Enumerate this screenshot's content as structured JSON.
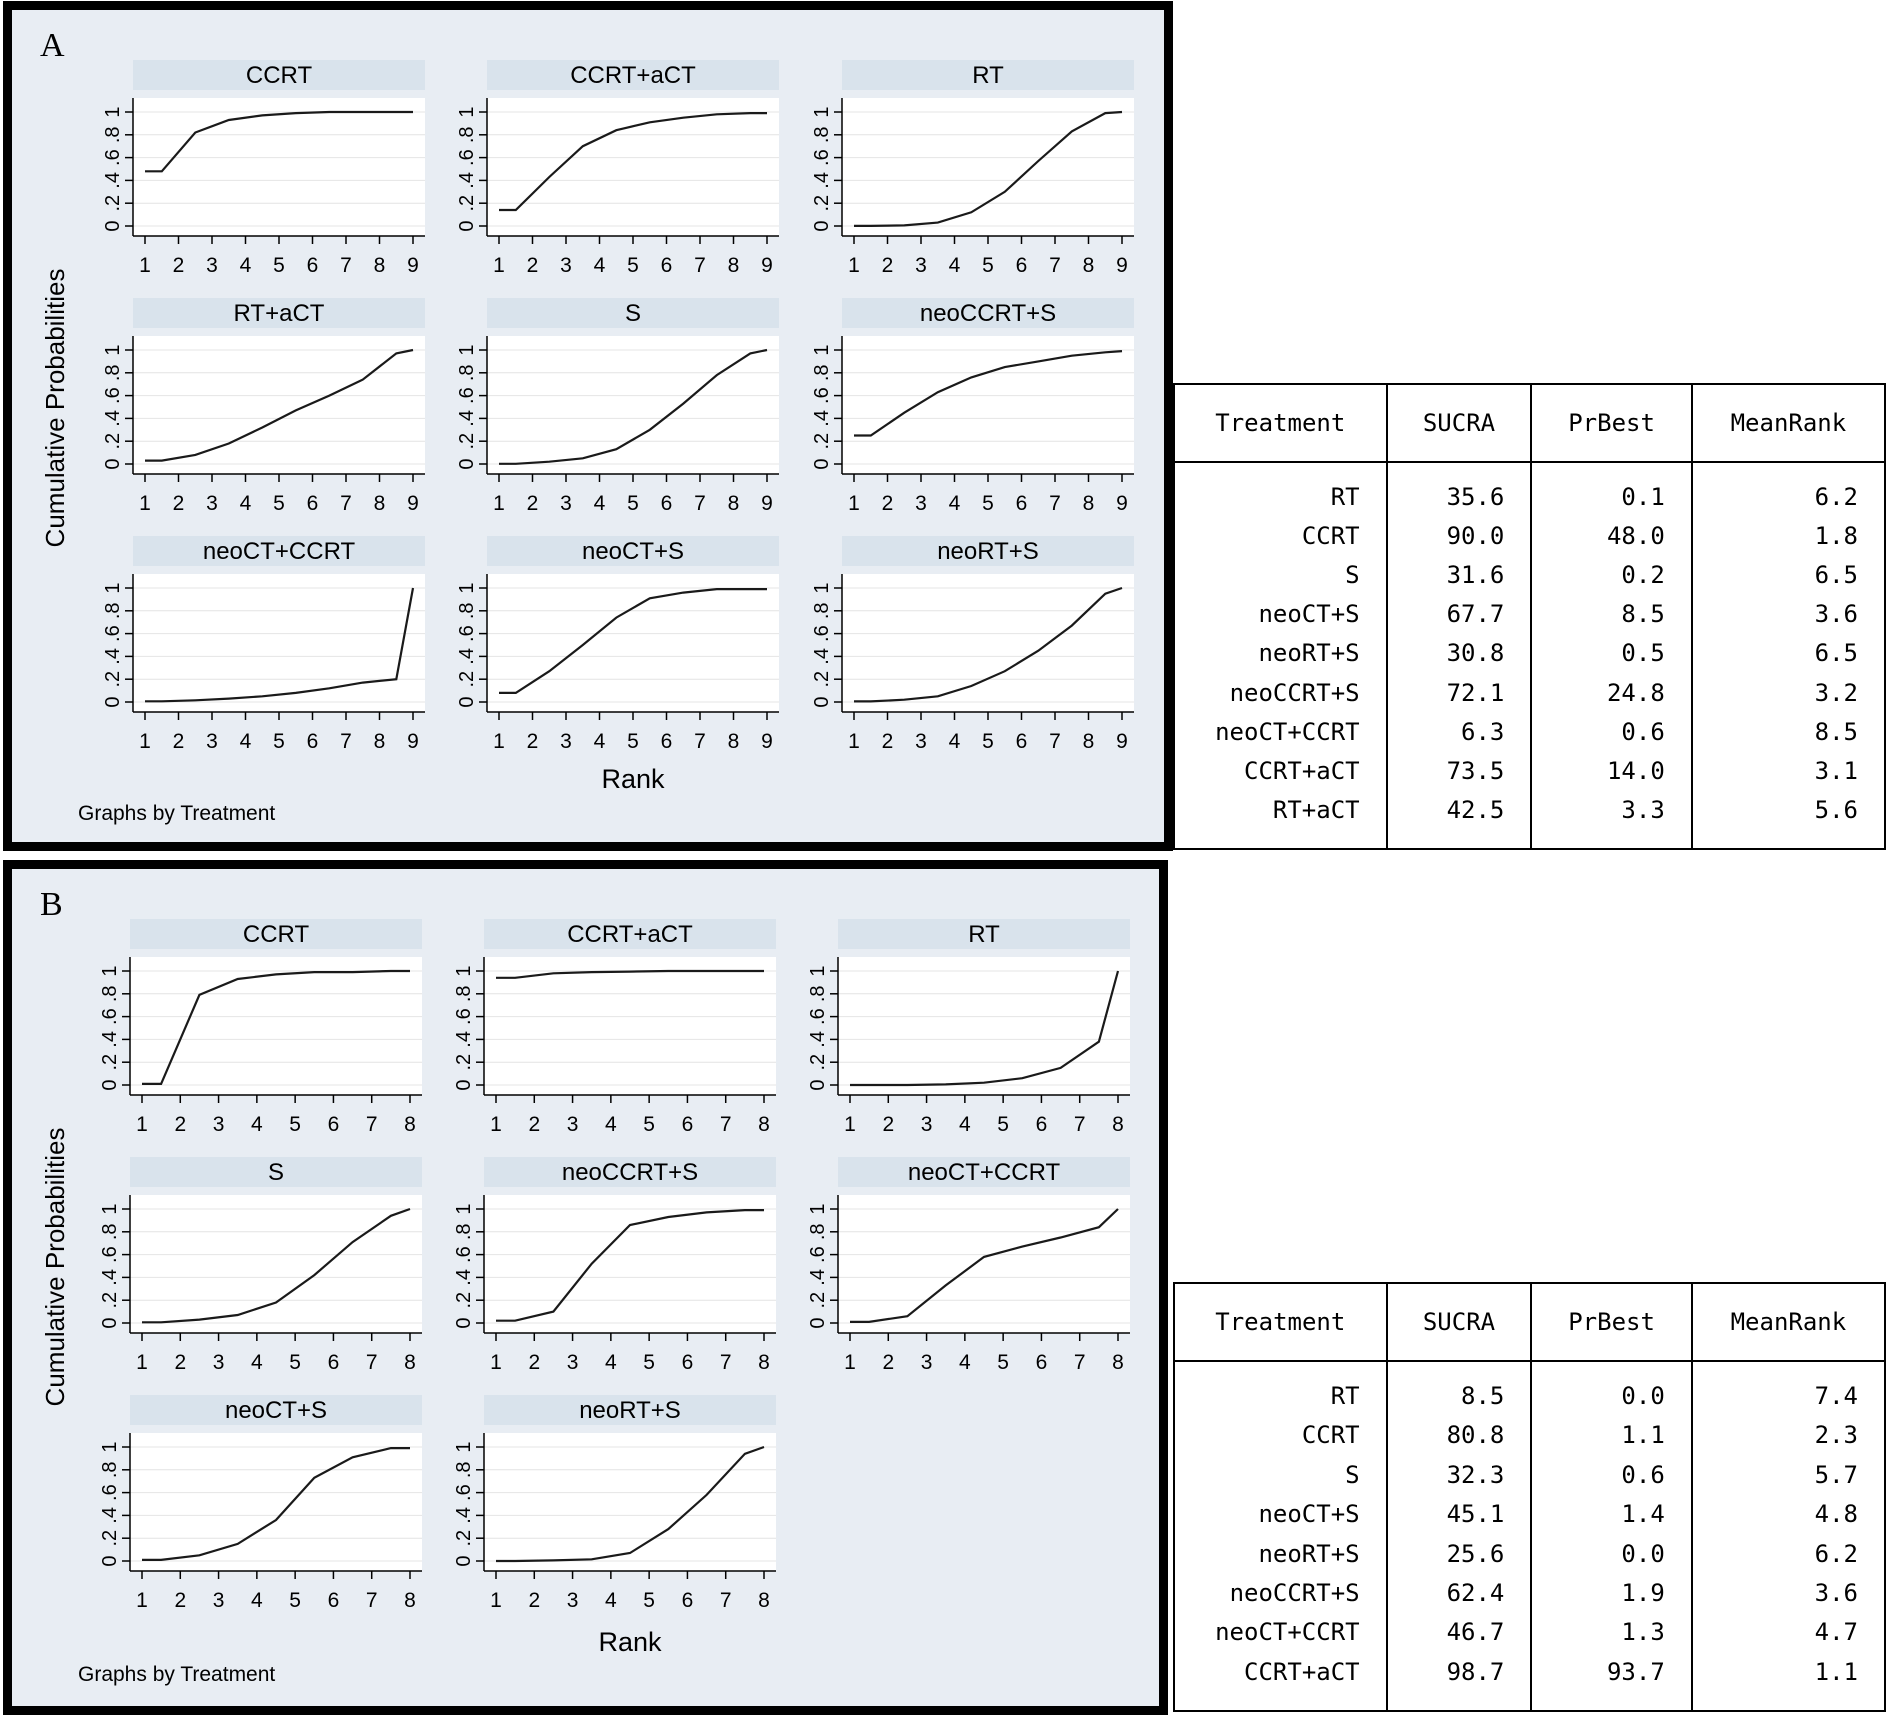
{
  "panel_a": {
    "letter": "A",
    "y_title": "Cumulative Probabilities",
    "x_title": "Rank",
    "note": "Graphs by Treatment",
    "ranks": [
      1,
      2,
      3,
      4,
      5,
      6,
      7,
      8,
      9
    ],
    "ytick_labels": [
      "0",
      ".2",
      ".4",
      ".6",
      ".8",
      "1"
    ]
  },
  "panel_b": {
    "letter": "B",
    "y_title": "Cumulative Probabilities",
    "x_title": "Rank",
    "note": "Graphs by Treatment",
    "ranks": [
      1,
      2,
      3,
      4,
      5,
      6,
      7,
      8
    ],
    "ytick_labels": [
      "0",
      ".2",
      ".4",
      ".6",
      ".8",
      "1"
    ]
  },
  "table_a": {
    "headers": [
      "Treatment",
      "SUCRA",
      "PrBest",
      "MeanRank"
    ],
    "rows": [
      [
        "RT",
        "35.6",
        "0.1",
        "6.2"
      ],
      [
        "CCRT",
        "90.0",
        "48.0",
        "1.8"
      ],
      [
        "S",
        "31.6",
        "0.2",
        "6.5"
      ],
      [
        "neoCT+S",
        "67.7",
        "8.5",
        "3.6"
      ],
      [
        "neoRT+S",
        "30.8",
        "0.5",
        "6.5"
      ],
      [
        "neoCCRT+S",
        "72.1",
        "24.8",
        "3.2"
      ],
      [
        "neoCT+CCRT",
        "6.3",
        "0.6",
        "8.5"
      ],
      [
        "CCRT+aCT",
        "73.5",
        "14.0",
        "3.1"
      ],
      [
        "RT+aCT",
        "42.5",
        "3.3",
        "5.6"
      ]
    ]
  },
  "table_b": {
    "headers": [
      "Treatment",
      "SUCRA",
      "PrBest",
      "MeanRank"
    ],
    "rows": [
      [
        "RT",
        "8.5",
        "0.0",
        "7.4"
      ],
      [
        "CCRT",
        "80.8",
        "1.1",
        "2.3"
      ],
      [
        "S",
        "32.3",
        "0.6",
        "5.7"
      ],
      [
        "neoCT+S",
        "45.1",
        "1.4",
        "4.8"
      ],
      [
        "neoRT+S",
        "25.6",
        "0.0",
        "6.2"
      ],
      [
        "neoCCRT+S",
        "62.4",
        "1.9",
        "3.6"
      ],
      [
        "neoCT+CCRT",
        "46.7",
        "1.3",
        "4.7"
      ],
      [
        "CCRT+aCT",
        "98.7",
        "93.7",
        "1.1"
      ]
    ]
  },
  "chart_data": [
    {
      "type": "line",
      "panel": "A",
      "xlabel": "Rank",
      "ylabel": "Cumulative Probabilities",
      "xlim": [
        1,
        9
      ],
      "ylim": [
        0,
        1
      ],
      "series": [
        {
          "name": "CCRT",
          "x": [
            1,
            1.5,
            2.5,
            3.5,
            4.5,
            5.5,
            6.5,
            7.5,
            8.5,
            9
          ],
          "values": [
            0.48,
            0.48,
            0.82,
            0.93,
            0.97,
            0.99,
            1,
            1,
            1,
            1
          ]
        },
        {
          "name": "CCRT+aCT",
          "x": [
            1,
            1.5,
            2.5,
            3.5,
            4.5,
            5.5,
            6.5,
            7.5,
            8.5,
            9
          ],
          "values": [
            0.14,
            0.14,
            0.43,
            0.7,
            0.84,
            0.91,
            0.95,
            0.98,
            0.99,
            0.99
          ]
        },
        {
          "name": "RT",
          "x": [
            1,
            1.5,
            2.5,
            3.5,
            4.5,
            5.5,
            6.5,
            7.5,
            8.5,
            9
          ],
          "values": [
            0.001,
            0.001,
            0.005,
            0.03,
            0.12,
            0.3,
            0.57,
            0.83,
            0.99,
            1
          ]
        },
        {
          "name": "RT+aCT",
          "x": [
            1,
            1.5,
            2.5,
            3.5,
            4.5,
            5.5,
            6.5,
            7.5,
            8.5,
            9
          ],
          "values": [
            0.03,
            0.03,
            0.08,
            0.18,
            0.32,
            0.47,
            0.6,
            0.74,
            0.97,
            1
          ]
        },
        {
          "name": "S",
          "x": [
            1,
            1.5,
            2.5,
            3.5,
            4.5,
            5.5,
            6.5,
            7.5,
            8.5,
            9
          ],
          "values": [
            0.002,
            0.002,
            0.02,
            0.05,
            0.13,
            0.3,
            0.53,
            0.78,
            0.97,
            1
          ]
        },
        {
          "name": "neoCCRT+S",
          "x": [
            1,
            1.5,
            2.5,
            3.5,
            4.5,
            5.5,
            6.5,
            7.5,
            8.5,
            9
          ],
          "values": [
            0.25,
            0.25,
            0.45,
            0.63,
            0.76,
            0.85,
            0.9,
            0.95,
            0.98,
            0.99
          ]
        },
        {
          "name": "neoCT+CCRT",
          "x": [
            1,
            1.5,
            2.5,
            3.5,
            4.5,
            5.5,
            6.5,
            7.5,
            8.5,
            9
          ],
          "values": [
            0.006,
            0.006,
            0.015,
            0.03,
            0.05,
            0.08,
            0.12,
            0.17,
            0.2,
            1
          ]
        },
        {
          "name": "neoCT+S",
          "x": [
            1,
            1.5,
            2.5,
            3.5,
            4.5,
            5.5,
            6.5,
            7.5,
            8.5,
            9
          ],
          "values": [
            0.08,
            0.08,
            0.27,
            0.5,
            0.74,
            0.91,
            0.96,
            0.99,
            0.99,
            0.99
          ]
        },
        {
          "name": "neoRT+S",
          "x": [
            1,
            1.5,
            2.5,
            3.5,
            4.5,
            5.5,
            6.5,
            7.5,
            8.5,
            9
          ],
          "values": [
            0.005,
            0.005,
            0.02,
            0.05,
            0.14,
            0.27,
            0.45,
            0.67,
            0.95,
            1
          ]
        }
      ]
    },
    {
      "type": "line",
      "panel": "B",
      "xlabel": "Rank",
      "ylabel": "Cumulative Probabilities",
      "xlim": [
        1,
        8
      ],
      "ylim": [
        0,
        1
      ],
      "series": [
        {
          "name": "CCRT",
          "x": [
            1,
            1.5,
            2.5,
            3.5,
            4.5,
            5.5,
            6.5,
            7.5,
            8
          ],
          "values": [
            0.01,
            0.01,
            0.79,
            0.93,
            0.97,
            0.99,
            0.99,
            1,
            1
          ]
        },
        {
          "name": "CCRT+aCT",
          "x": [
            1,
            1.5,
            2.5,
            3.5,
            4.5,
            5.5,
            6.5,
            7.5,
            8
          ],
          "values": [
            0.94,
            0.94,
            0.98,
            0.99,
            0.995,
            1,
            1,
            1,
            1
          ]
        },
        {
          "name": "RT",
          "x": [
            1,
            1.5,
            2.5,
            3.5,
            4.5,
            5.5,
            6.5,
            7.5,
            8
          ],
          "values": [
            0.0,
            0.0,
            0.0,
            0.005,
            0.02,
            0.06,
            0.15,
            0.38,
            1
          ]
        },
        {
          "name": "S",
          "x": [
            1,
            1.5,
            2.5,
            3.5,
            4.5,
            5.5,
            6.5,
            7.5,
            8
          ],
          "values": [
            0.006,
            0.006,
            0.03,
            0.07,
            0.18,
            0.42,
            0.71,
            0.94,
            1
          ]
        },
        {
          "name": "neoCCRT+S",
          "x": [
            1,
            1.5,
            2.5,
            3.5,
            4.5,
            5.5,
            6.5,
            7.5,
            8
          ],
          "values": [
            0.02,
            0.02,
            0.1,
            0.52,
            0.86,
            0.93,
            0.97,
            0.99,
            0.99
          ]
        },
        {
          "name": "neoCT+CCRT",
          "x": [
            1,
            1.5,
            2.5,
            3.5,
            4.5,
            5.5,
            6.5,
            7.5,
            8
          ],
          "values": [
            0.01,
            0.01,
            0.06,
            0.33,
            0.58,
            0.67,
            0.75,
            0.84,
            1
          ]
        },
        {
          "name": "neoCT+S",
          "x": [
            1,
            1.5,
            2.5,
            3.5,
            4.5,
            5.5,
            6.5,
            7.5,
            8
          ],
          "values": [
            0.01,
            0.01,
            0.05,
            0.15,
            0.36,
            0.73,
            0.91,
            0.99,
            0.99
          ]
        },
        {
          "name": "neoRT+S",
          "x": [
            1,
            1.5,
            2.5,
            3.5,
            4.5,
            5.5,
            6.5,
            7.5,
            8
          ],
          "values": [
            0.0,
            0.0,
            0.005,
            0.015,
            0.07,
            0.28,
            0.58,
            0.94,
            1
          ]
        }
      ]
    }
  ]
}
